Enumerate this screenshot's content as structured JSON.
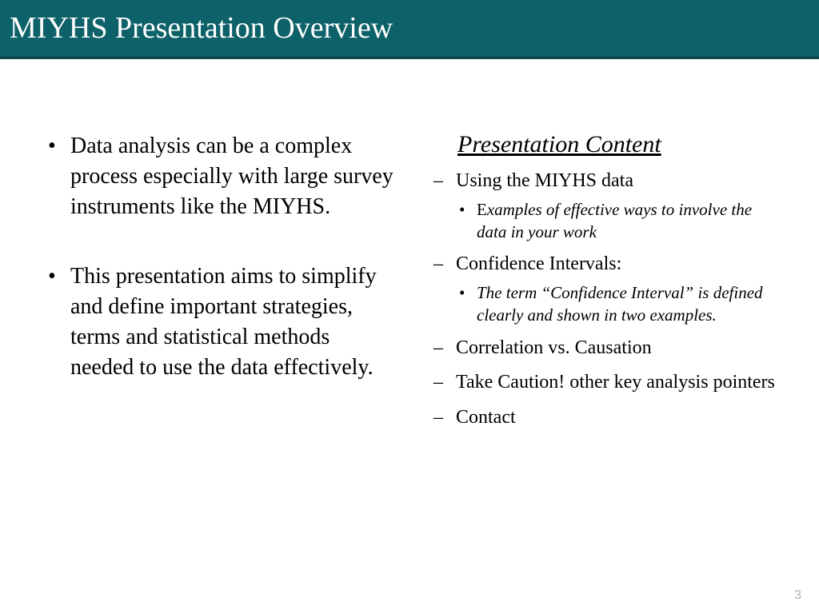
{
  "header": {
    "title": "MIYHS Presentation Overview"
  },
  "left": {
    "bullets": [
      "Data analysis can be a complex process especially with large survey instruments like the MIYHS.",
      "This presentation aims to simplify and define important strategies, terms  and statistical methods needed to use the data effectively."
    ]
  },
  "right": {
    "heading": "Presentation  Content",
    "items": [
      {
        "label": "Using the MIYHS data",
        "sub_prefix": "E",
        "sub_rest": "xamples of effective ways to involve the data in your work"
      },
      {
        "label": "Confidence Intervals:",
        "sub": "The term “Confidence Interval” is defined clearly and shown in two examples."
      },
      {
        "label": "Correlation vs. Causation"
      },
      {
        "label": "Take Caution! other key analysis pointers"
      },
      {
        "label": "Contact"
      }
    ]
  },
  "page_number": "3",
  "colors": {
    "header_bg": "#0d6168",
    "header_border": "#0a4b52",
    "text": "#000000",
    "pagenum": "#b0b0b0"
  }
}
